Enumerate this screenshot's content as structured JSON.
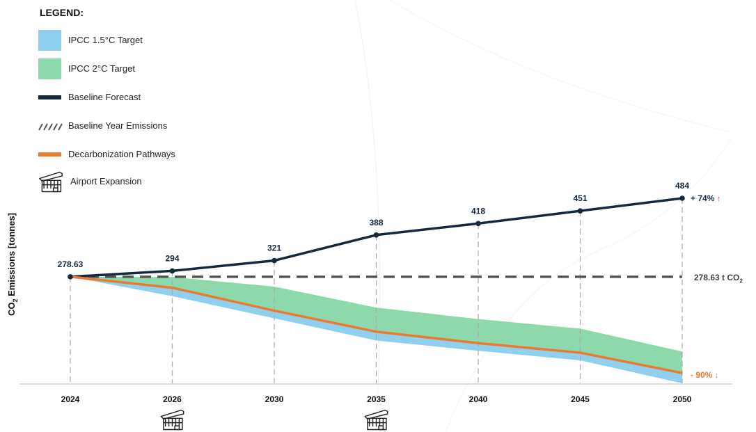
{
  "legend": {
    "title": "LEGEND:",
    "items": [
      {
        "label": "IPCC 1.5°C Target",
        "color": "#8fd0ee",
        "kind": "box"
      },
      {
        "label": "IPCC 2°C Target",
        "color": "#8ed9ab",
        "kind": "box"
      },
      {
        "label": "Baseline Forecast",
        "color": "#14283f",
        "kind": "bar"
      },
      {
        "label": "Baseline Year Emissions",
        "color": "#555555",
        "kind": "dash"
      },
      {
        "label": "Decarbonization Pathways",
        "color": "#ec7a2e",
        "kind": "bar"
      },
      {
        "label": "Airport Expansion",
        "icon": "airport-terminal-icon",
        "kind": "icon"
      }
    ]
  },
  "chart_data": {
    "type": "line",
    "categories": [
      "2024",
      "2026",
      "2030",
      "2035",
      "2040",
      "2045",
      "2050"
    ],
    "ylabel_main": "CO",
    "ylabel_sub": "2",
    "ylabel_rest": " Emissions [tonnes]",
    "series": [
      {
        "name": "Baseline Forecast",
        "values": [
          278.63,
          294,
          321,
          388,
          418,
          451,
          484
        ],
        "labels": [
          "278.63",
          "294",
          "321",
          "388",
          "418",
          "451",
          "484"
        ],
        "color": "#14283f"
      },
      {
        "name": "Decarbonization Pathways",
        "values": [
          278.63,
          250,
          190,
          135,
          105,
          80,
          27
        ],
        "color": "#ec7a2e"
      }
    ],
    "bands": [
      {
        "name": "IPCC 2°C Target",
        "upper": [
          278.63,
          278,
          253,
          198,
          168,
          143,
          83
        ],
        "lower": [
          278.63,
          250,
          190,
          135,
          105,
          80,
          27
        ],
        "color": "#8ed9ab"
      },
      {
        "name": "IPCC 1.5°C Target",
        "upper": [
          278.63,
          250,
          190,
          135,
          105,
          80,
          27
        ],
        "lower": [
          278.63,
          228,
          170,
          112,
          85,
          60,
          0
        ],
        "color": "#8fd0ee"
      }
    ],
    "baseline": {
      "name": "Baseline Year Emissions",
      "value": 278.63,
      "label_value": "278.63",
      "label_unit": " t CO",
      "label_sub": "2",
      "color": "#555555"
    },
    "annotations": {
      "baseline_change_text": "+ 74%",
      "baseline_change_arrow": "↑",
      "pathway_change_text": "- 90%",
      "pathway_change_arrow": "↓"
    },
    "expansion_years": [
      "2026",
      "2035"
    ],
    "ylim": [
      -5,
      520
    ],
    "grid": false
  },
  "colors": {
    "baseline": "#14283f",
    "pathway": "#ec7a2e",
    "target_2c": "#8ed9ab",
    "target_15c": "#8fd0ee",
    "axis": "#bbbbbb",
    "guide": "#aaaaaa"
  }
}
